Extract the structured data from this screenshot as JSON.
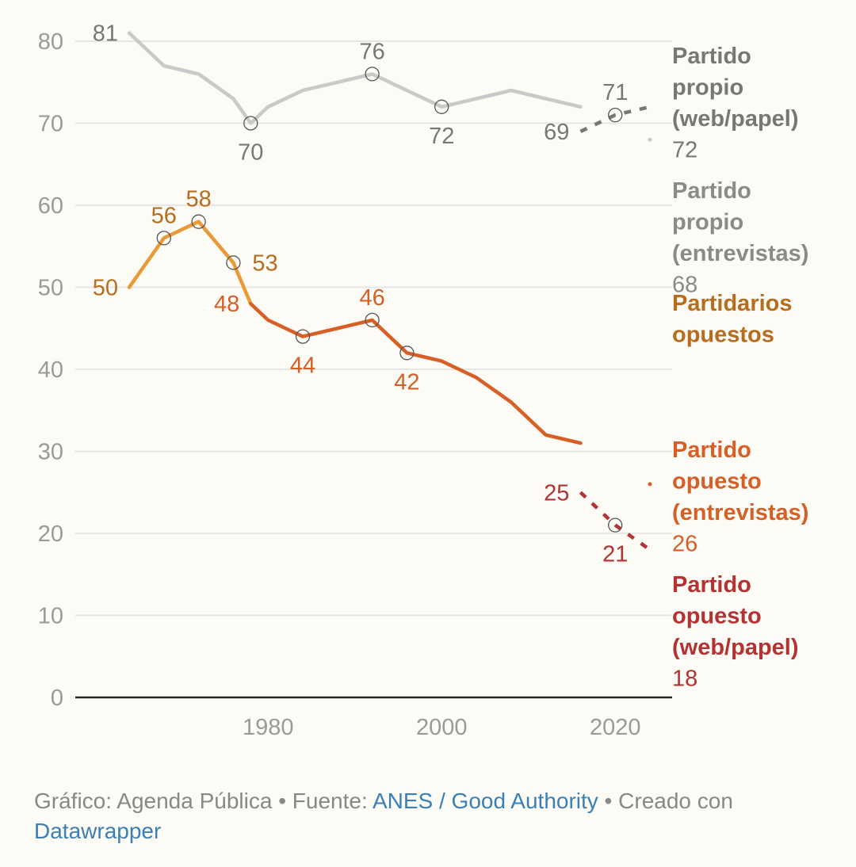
{
  "colors": {
    "own_web": "#777777",
    "own_interview": "#c9c9c9",
    "partisans_opposed": "#e99a36",
    "opp_interview": "#d75f26",
    "opp_web": "#b33232",
    "grid": "#e6e6e6",
    "tick": "#9a9a9a",
    "link": "#3a7fb5"
  },
  "chart_data": {
    "type": "line",
    "title": "",
    "xlabel": "",
    "ylabel": "",
    "xlim": [
      1960,
      2026
    ],
    "ylim": [
      0,
      80
    ],
    "x_ticks": [
      1980,
      2000,
      2020
    ],
    "y_ticks": [
      0,
      10,
      20,
      30,
      40,
      50,
      60,
      70,
      80
    ],
    "grid": "horizontal",
    "legend": "direct labels at right",
    "series": [
      {
        "key": "own_interview",
        "name": "Partido propio (entrevistas)",
        "end_value": "68",
        "color": "#c9c9c9",
        "style": "solid",
        "x": [
          1964,
          1968,
          1972,
          1976,
          1978,
          1980,
          1984,
          1988,
          1992,
          1996,
          2000,
          2004,
          2008,
          2012,
          2016
        ],
        "values": [
          81,
          77,
          76,
          73,
          70,
          72,
          74,
          75,
          76,
          74,
          72,
          73,
          74,
          73,
          72
        ],
        "markers": [
          1978,
          1992,
          2000
        ],
        "labels": [
          {
            "x": 1964,
            "text": "81",
            "pos": "left"
          },
          {
            "x": 1978,
            "text": "70",
            "pos": "below"
          },
          {
            "x": 1992,
            "text": "76",
            "pos": "above"
          },
          {
            "x": 2000,
            "text": "72",
            "pos": "below"
          }
        ]
      },
      {
        "key": "own_web",
        "name": "Partido propio (web/papel)",
        "end_value": "72",
        "color": "#777777",
        "style": "dashed",
        "x": [
          2016,
          2020,
          2024
        ],
        "values": [
          69,
          71,
          72
        ],
        "markers": [
          2020
        ],
        "labels": [
          {
            "x": 2016,
            "text": "69",
            "pos": "left"
          },
          {
            "x": 2020,
            "text": "71",
            "pos": "above"
          }
        ]
      },
      {
        "key": "partisans_opposed",
        "name": "Partidarios opuestos",
        "end_value": "",
        "color": "#e99a36",
        "style": "solid",
        "x": [
          1964,
          1968,
          1972,
          1976,
          1978
        ],
        "values": [
          50,
          56,
          58,
          53,
          48
        ],
        "markers": [
          1968,
          1972,
          1976
        ],
        "labels": [
          {
            "x": 1964,
            "text": "50",
            "pos": "left"
          },
          {
            "x": 1968,
            "text": "56",
            "pos": "above"
          },
          {
            "x": 1972,
            "text": "58",
            "pos": "above"
          },
          {
            "x": 1976,
            "text": "53",
            "pos": "right"
          }
        ]
      },
      {
        "key": "opp_interview",
        "name": "Partido opuesto (entrevistas)",
        "end_value": "26",
        "color": "#d75f26",
        "style": "solid",
        "x": [
          1978,
          1980,
          1984,
          1988,
          1992,
          1996,
          2000,
          2004,
          2008,
          2012,
          2016
        ],
        "values": [
          48,
          46,
          44,
          45,
          46,
          42,
          41,
          39,
          36,
          32,
          31
        ],
        "markers": [
          1984,
          1992,
          1996
        ],
        "labels": [
          {
            "x": 1978,
            "text": "48",
            "pos": "left"
          },
          {
            "x": 1984,
            "text": "44",
            "pos": "below"
          },
          {
            "x": 1992,
            "text": "46",
            "pos": "above"
          },
          {
            "x": 1996,
            "text": "42",
            "pos": "below"
          }
        ]
      },
      {
        "key": "opp_web",
        "name": "Partido opuesto (web/papel)",
        "end_value": "18",
        "color": "#b33232",
        "style": "dashed",
        "x": [
          2016,
          2020,
          2024
        ],
        "values": [
          25,
          21,
          18
        ],
        "markers": [
          2020
        ],
        "labels": [
          {
            "x": 2016,
            "text": "25",
            "pos": "left"
          },
          {
            "x": 2020,
            "text": "21",
            "pos": "below"
          }
        ]
      }
    ],
    "end_dots": [
      {
        "x": 2024,
        "value": 68,
        "color": "#c9c9c9"
      },
      {
        "x": 2024,
        "value": 26,
        "color": "#d75f26"
      }
    ]
  },
  "footer": {
    "prefix": "Gráfico: Agenda Pública • Fuente: ",
    "source_link": "ANES / Good Authority",
    "middle": " • Creado con ",
    "tool_link": "Datawrapper"
  }
}
